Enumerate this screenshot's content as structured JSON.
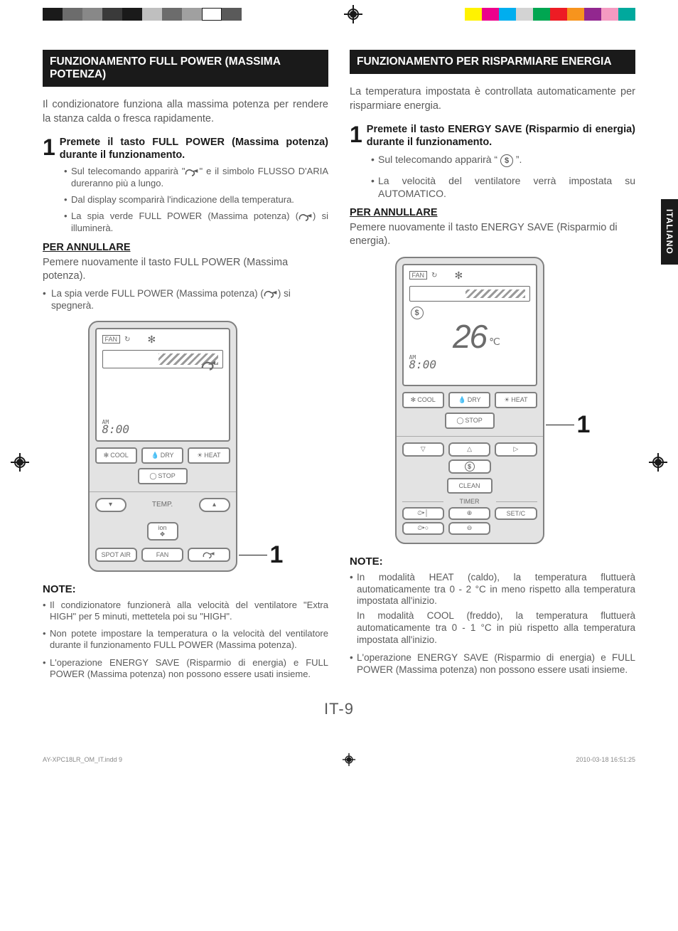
{
  "registration": {
    "left_swatches": [
      "#1a1a1a",
      "#6c6c6c",
      "#888888",
      "#3a3a3a",
      "#1a1a1a",
      "#bfbfbf",
      "#6c6c6c",
      "#a0a0a0",
      "#ffffff",
      "#5a5a5a"
    ],
    "right_swatches": [
      "#fff200",
      "#ec008c",
      "#00aeef",
      "#d3d3d3",
      "#00a651",
      "#ed1c24",
      "#f7941d",
      "#92278f",
      "#f49ac1",
      "#00a99d"
    ],
    "left_border": true
  },
  "lang_tab": "ITALIANO",
  "page_number": "IT-9",
  "footer": {
    "file": "AY-XPC18LR_OM_IT.indd   9",
    "timestamp": "2010-03-18   16:51:25"
  },
  "left": {
    "header": "FUNZIONAMENTO FULL POWER (MASSIMA POTENZA)",
    "intro": "Il condizionatore funziona alla massima potenza per rendere la stanza calda o fresca rapidamente.",
    "step_num": "1",
    "step_title": "Premete il tasto FULL POWER (Massima potenza) durante il funzionamento.",
    "step_bullets": [
      "Sul telecomando apparirà “ ” e il simbolo FLUSSO D'ARIA dureranno più a lungo.",
      "Dal display scomparirà l'indicazione della temperatura.",
      "La spia verde FULL POWER (Massima potenza) ( ) si illuminerà."
    ],
    "cancel_heading": "PER ANNULLARE",
    "cancel_body": "Pemere nuovamente il tasto FULL POWER (Massima potenza).",
    "cancel_bullet": "La spia verde FULL POWER (Massima potenza) ( ) si spegnerà.",
    "remote": {
      "fan_label": "FAN",
      "am_label": "AM",
      "time": "8:00",
      "modes": {
        "cool": "COOL",
        "dry": "DRY",
        "heat": "HEAT",
        "stop": "STOP"
      },
      "temp_label": "TEMP.",
      "ion_label": "ion",
      "bottom": {
        "spot": "SPOT AIR",
        "fan": "FAN"
      }
    },
    "callout": "1",
    "notes_heading": "NOTE:",
    "notes": [
      "Il condizionatore funzionerà alla velocità del ventilatore \"Extra HIGH\" per 5 minuti, mettetela poi su \"HIGH\".",
      "Non potete impostare la temperatura o la velocità del ventilatore durante il funzionamento FULL POWER (Massima potenza).",
      "L'operazione ENERGY SAVE (Risparmio di energia) e FULL POWER (Massima potenza) non possono essere usati insieme."
    ]
  },
  "right": {
    "header": "FUNZIONAMENTO PER RISPARMIARE ENERGIA",
    "intro": "La temperatura impostata è controllata automaticamente per risparmiare energia.",
    "step_num": "1",
    "step_title": "Premete il tasto ENERGY SAVE (Risparmio di energia) durante il funzionamento.",
    "step_bullets_a": "Sul telecomando apparirà “",
    "step_bullets_a2": "”.",
    "step_bullets_b": "La velocità del ventilatore verrà impostata su AUTOMATICO.",
    "cancel_heading": "PER ANNULLARE",
    "cancel_body": "Pemere nuovamente il tasto ENERGY SAVE (Risparmio di energia).",
    "remote": {
      "fan_label": "FAN",
      "temp_value": "26",
      "temp_unit": "℃",
      "am_label": "AM",
      "time": "8:00",
      "modes": {
        "cool": "COOL",
        "dry": "DRY",
        "heat": "HEAT",
        "stop": "STOP"
      },
      "clean": "CLEAN",
      "timer_label": "TIMER",
      "setc": "SET/C"
    },
    "callout": "1",
    "notes_heading": "NOTE:",
    "notes": [
      "In modalità HEAT (caldo), la temperatura fluttuerà automaticamente tra 0 - 2 °C in meno rispetto alla temperatura impostata all'inizio.",
      "In modalità COOL (freddo), la temperatura fluttuerà automaticamente tra 0 - 1 °C in più rispetto alla temperatura impostata all'inizio.",
      "L'operazione ENERGY SAVE (Risparmio di energia) e FULL POWER (Massima potenza) non possono essere usati insieme."
    ]
  },
  "colors": {
    "text": "#1a1a1a",
    "muted": "#5a5a5a",
    "ui_border": "#808080",
    "ui_fill": "#e3e3e3",
    "lcd_bg": "#ffffff",
    "icon": "#6b6b6b"
  }
}
